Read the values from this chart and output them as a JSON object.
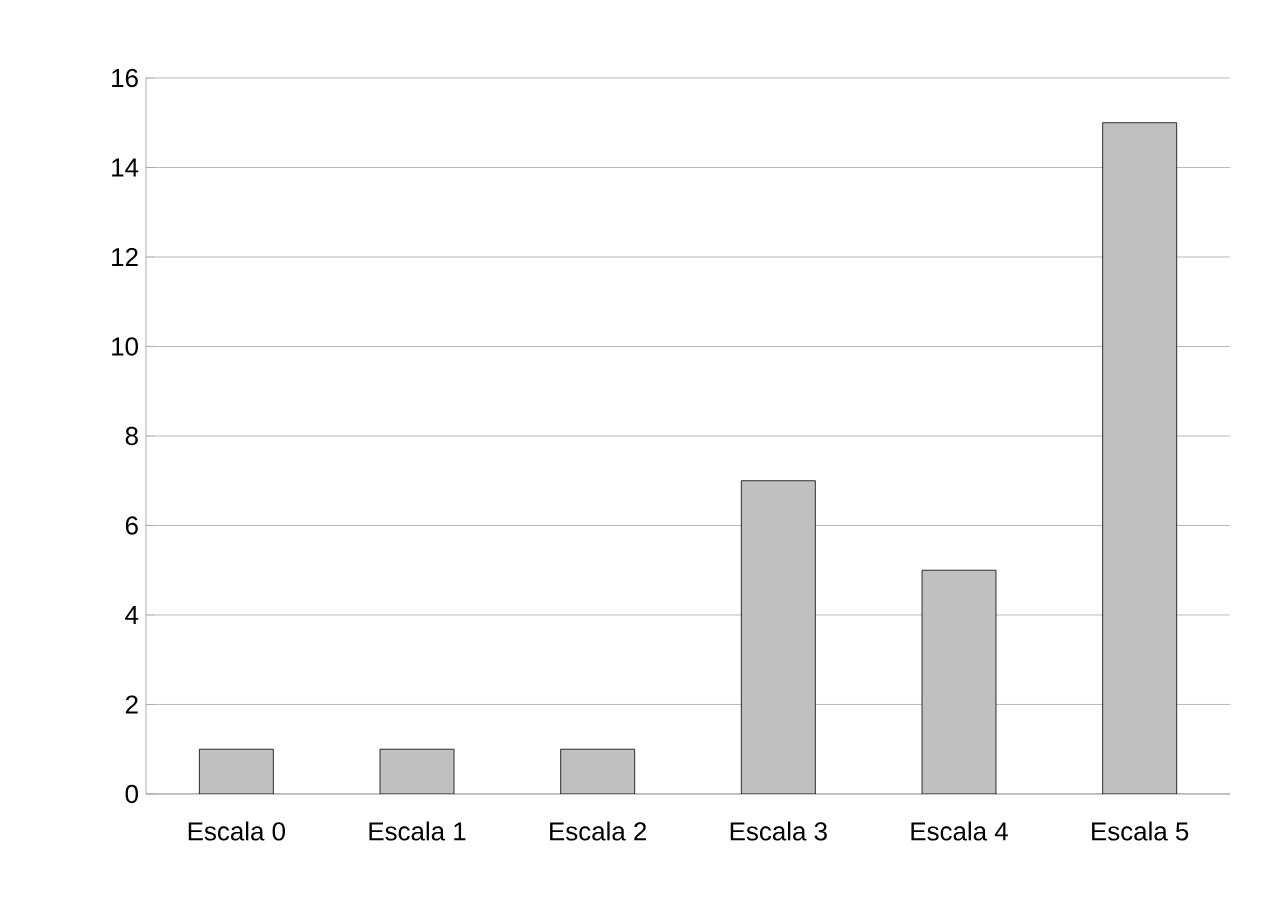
{
  "chart_data": {
    "type": "bar",
    "categories": [
      "Escala 0",
      "Escala 1",
      "Escala 2",
      "Escala 3",
      "Escala 4",
      "Escala 5"
    ],
    "values": [
      1,
      1,
      1,
      7,
      5,
      15
    ],
    "color": "#c0c0c0",
    "ylim": [
      0,
      16
    ],
    "yticks": [
      0,
      2,
      4,
      6,
      8,
      10,
      12,
      14,
      16
    ],
    "grid": "y"
  }
}
